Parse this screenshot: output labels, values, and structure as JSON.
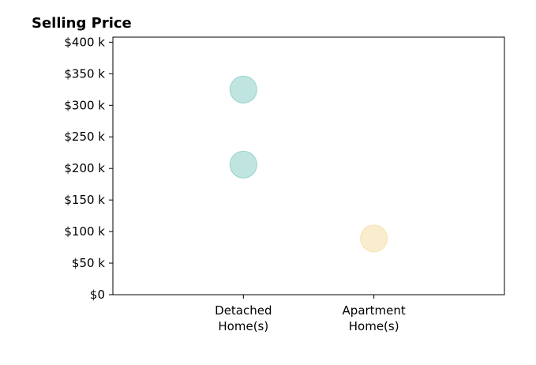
{
  "chart_data": {
    "type": "scatter",
    "title": "Selling Price",
    "xlabel": "",
    "ylabel": "",
    "x_categories": [
      [
        "Detached",
        "Home(s)"
      ],
      [
        "Apartment",
        "Home(s)"
      ]
    ],
    "y_ticks": [
      {
        "value": 0,
        "label": "$0"
      },
      {
        "value": 50,
        "label": "$50 k"
      },
      {
        "value": 100,
        "label": "$100 k"
      },
      {
        "value": 150,
        "label": "$150 k"
      },
      {
        "value": 200,
        "label": "$200 k"
      },
      {
        "value": 250,
        "label": "$250 k"
      },
      {
        "value": 300,
        "label": "$300 k"
      },
      {
        "value": 350,
        "label": "$350 k"
      },
      {
        "value": 400,
        "label": "$400 k"
      }
    ],
    "ylim": [
      0,
      408
    ],
    "x_slots": 3,
    "points": [
      {
        "category": 0,
        "y": 325,
        "color": "#8dcfc8"
      },
      {
        "category": 0,
        "y": 206,
        "color": "#8dcfc8"
      },
      {
        "category": 1,
        "y": 89,
        "color": "#f5dfa6"
      }
    ],
    "grid": false,
    "legend": "none"
  }
}
